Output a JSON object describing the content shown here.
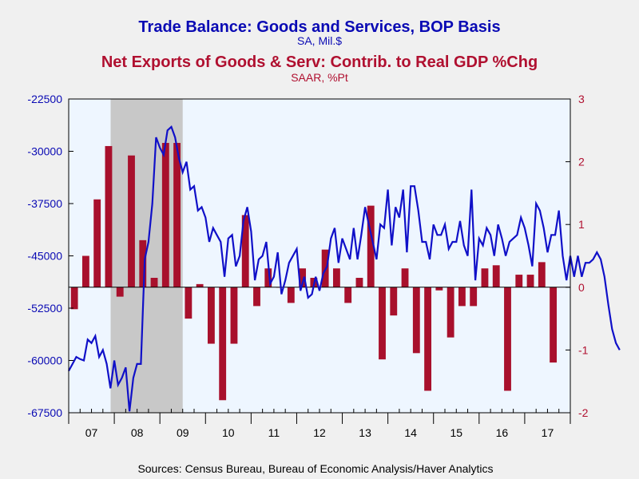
{
  "chart_data": {
    "type": "bar+line",
    "title_primary": "Trade Balance: Goods and Services, BOP Basis",
    "subtitle_primary": "SA, Mil.$",
    "title_secondary": "Net Exports of Goods & Serv: Contrib. to Real GDP %Chg",
    "subtitle_secondary": "SAAR, %Pt",
    "source": "Sources:  Census Bureau, Bureau of Economic Analysis/Haver Analytics",
    "left_axis": {
      "ticks": [
        "-22500",
        "-30000",
        "-37500",
        "-45000",
        "-52500",
        "-60000",
        "-67500"
      ],
      "ylim": [
        -67500,
        -22500
      ],
      "color": "#0a0ab4"
    },
    "right_axis": {
      "ticks": [
        "3",
        "2",
        "1",
        "0",
        "-1",
        "-2"
      ],
      "ylim": [
        -2,
        3
      ],
      "color": "#b01030"
    },
    "x_axis": {
      "start": 2007.0,
      "end": 2018.0,
      "year_labels": [
        "07",
        "08",
        "09",
        "10",
        "11",
        "12",
        "13",
        "14",
        "15",
        "16",
        "17"
      ]
    },
    "recession": {
      "start": 2007.92,
      "end": 2009.5,
      "color": "#c8c8c8"
    },
    "plot_background": "#eef6ff",
    "bar_color": "#a8102c",
    "line_color": "#1010c8",
    "bar_series": {
      "name": "Net Exports of Goods & Serv: Contrib. to Real GDP %Chg",
      "quarter_values": [
        -0.35,
        0.5,
        1.4,
        2.25,
        -0.15,
        2.1,
        0.75,
        0.15,
        2.3,
        2.3,
        -0.5,
        0.05,
        -0.9,
        -1.8,
        -0.9,
        1.15,
        -0.3,
        0.3,
        0.0,
        -0.25,
        0.3,
        0.15,
        0.6,
        0.3,
        -0.25,
        0.15,
        1.3,
        -1.15,
        -0.45,
        0.3,
        -1.05,
        -1.65,
        -0.05,
        -0.8,
        -0.3,
        -0.3,
        0.3,
        0.35,
        -1.65,
        0.2,
        0.2,
        0.4,
        -1.2
      ]
    },
    "line_series": {
      "name": "Trade Balance: Goods and Services, BOP Basis",
      "monthly_values": [
        -61500,
        -60500,
        -59500,
        -59800,
        -60000,
        -57000,
        -57500,
        -56500,
        -59500,
        -58500,
        -60500,
        -64000,
        -60000,
        -63500,
        -62500,
        -61000,
        -67300,
        -62500,
        -60500,
        -60500,
        -45500,
        -43000,
        -37500,
        -28000,
        -29500,
        -30500,
        -27000,
        -26500,
        -28000,
        -31000,
        -33000,
        -31500,
        -35500,
        -35000,
        -38500,
        -38000,
        -39500,
        -43000,
        -41000,
        -42000,
        -43000,
        -48000,
        -42500,
        -42000,
        -46500,
        -45000,
        -40000,
        -38000,
        -41500,
        -48500,
        -45500,
        -45000,
        -43000,
        -49000,
        -48000,
        -44500,
        -50500,
        -48500,
        -46000,
        -45000,
        -44000,
        -50000,
        -48000,
        -51000,
        -50500,
        -48000,
        -50000,
        -47500,
        -46500,
        -42500,
        -41000,
        -46000,
        -42500,
        -44000,
        -45500,
        -41000,
        -45500,
        -42000,
        -38000,
        -40500,
        -43000,
        -45500,
        -40500,
        -41000,
        -35500,
        -43500,
        -38000,
        -39500,
        -35500,
        -44500,
        -35000,
        -35000,
        -38500,
        -43000,
        -43000,
        -45500,
        -40500,
        -42000,
        -42000,
        -40500,
        -44000,
        -43000,
        -43000,
        -40000,
        -43500,
        -45000,
        -35500,
        -48500,
        -42500,
        -43500,
        -41000,
        -42000,
        -45000,
        -40500,
        -42500,
        -45000,
        -43000,
        -42500,
        -42000,
        -39500,
        -41000,
        -43500,
        -46500,
        -37500,
        -38500,
        -41000,
        -44500,
        -42000,
        -42000,
        -38500,
        -45000,
        -48500,
        -45000,
        -48000,
        -45000,
        -48000,
        -46000,
        -46000,
        -45500,
        -44500,
        -45500,
        -48000,
        -52000,
        -55500,
        -57500,
        -58500
      ]
    }
  }
}
